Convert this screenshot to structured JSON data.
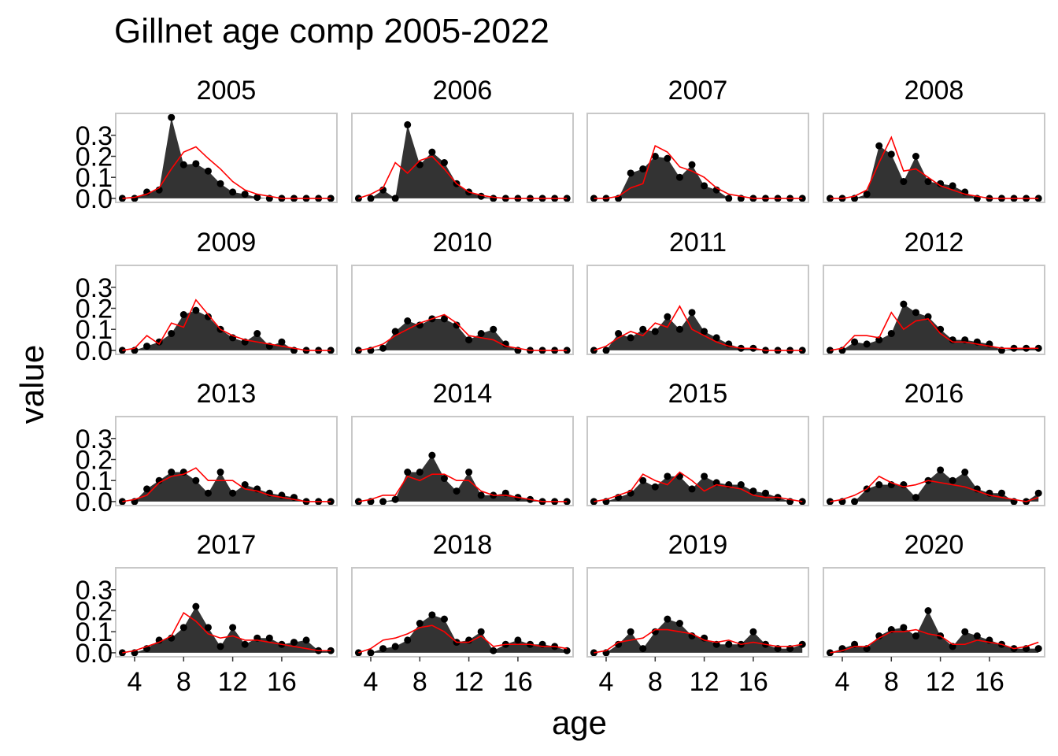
{
  "chart_data": {
    "type": "area-facet",
    "title": "Gillnet age comp 2005-2022",
    "x_label": "age",
    "y_label": "value",
    "ages": [
      3,
      4,
      5,
      6,
      7,
      8,
      9,
      10,
      11,
      12,
      13,
      14,
      15,
      16,
      17,
      18,
      19,
      20
    ],
    "xlim": [
      2.46,
      20.5
    ],
    "xticks": [
      4,
      8,
      12,
      16
    ],
    "ylim": [
      -0.019,
      0.404
    ],
    "yticks": [
      {
        "value": 0,
        "label": "0.0"
      },
      0.1,
      0.2,
      0.3
    ],
    "observed_color": "#333333",
    "fitted_color": "#ff0000",
    "panels": [
      {
        "year": "2005",
        "values": [
          0,
          0,
          0.03,
          0.04,
          0.385,
          0.16,
          0.165,
          0.13,
          0.07,
          0.03,
          0.02,
          0.005,
          0,
          0,
          0,
          0,
          0,
          0
        ],
        "fitted": [
          0,
          0.005,
          0.02,
          0.05,
          0.14,
          0.22,
          0.245,
          0.19,
          0.14,
          0.08,
          0.04,
          0.02,
          0.01,
          0,
          0,
          0,
          0,
          0
        ]
      },
      {
        "year": "2006",
        "values": [
          0,
          0,
          0.04,
          0,
          0.35,
          0.16,
          0.22,
          0.17,
          0.07,
          0.03,
          0.01,
          0,
          0,
          0,
          0,
          0,
          0,
          0
        ],
        "fitted": [
          0,
          0.02,
          0.05,
          0.17,
          0.12,
          0.18,
          0.2,
          0.14,
          0.07,
          0.03,
          0.015,
          0.005,
          0,
          0,
          0,
          0,
          0,
          0
        ]
      },
      {
        "year": "2007",
        "values": [
          0,
          0,
          0,
          0.12,
          0.14,
          0.2,
          0.19,
          0.1,
          0.16,
          0.06,
          0.04,
          0,
          0,
          0,
          0,
          0,
          0,
          0
        ],
        "fitted": [
          0,
          0,
          0.01,
          0.05,
          0.07,
          0.25,
          0.22,
          0.15,
          0.13,
          0.1,
          0.05,
          0.02,
          0.01,
          0,
          0,
          0,
          0,
          0
        ]
      },
      {
        "year": "2008",
        "values": [
          0,
          0,
          0,
          0.02,
          0.25,
          0.21,
          0.08,
          0.2,
          0.08,
          0.07,
          0.06,
          0.03,
          0,
          0,
          0,
          0,
          0,
          0
        ],
        "fitted": [
          0,
          0,
          0.01,
          0.04,
          0.17,
          0.29,
          0.13,
          0.14,
          0.1,
          0.06,
          0.04,
          0.02,
          0.01,
          0,
          0,
          0,
          0,
          0
        ]
      },
      {
        "year": "2009",
        "values": [
          0,
          0,
          0.02,
          0.04,
          0.08,
          0.17,
          0.19,
          0.16,
          0.1,
          0.06,
          0.04,
          0.08,
          0.02,
          0.04,
          0,
          0,
          0,
          0
        ],
        "fitted": [
          0,
          0.01,
          0.07,
          0.03,
          0.13,
          0.11,
          0.24,
          0.17,
          0.1,
          0.07,
          0.05,
          0.04,
          0.03,
          0.02,
          0.01,
          0,
          0,
          0
        ]
      },
      {
        "year": "2010",
        "values": [
          0,
          0,
          0.01,
          0.09,
          0.14,
          0.12,
          0.15,
          0.15,
          0.12,
          0.05,
          0.08,
          0.1,
          0.03,
          0,
          0,
          0,
          0,
          0
        ],
        "fitted": [
          0,
          0.01,
          0.03,
          0.07,
          0.1,
          0.13,
          0.15,
          0.17,
          0.13,
          0.07,
          0.06,
          0.05,
          0.02,
          0.01,
          0,
          0,
          0,
          0
        ]
      },
      {
        "year": "2011",
        "values": [
          0,
          0,
          0.08,
          0.06,
          0.1,
          0.09,
          0.16,
          0.1,
          0.18,
          0.09,
          0.06,
          0.03,
          0.01,
          0.01,
          0,
          0,
          0,
          0
        ],
        "fitted": [
          0,
          0.02,
          0.06,
          0.09,
          0.07,
          0.13,
          0.11,
          0.21,
          0.1,
          0.07,
          0.04,
          0.02,
          0.01,
          0.01,
          0,
          0,
          0,
          0
        ]
      },
      {
        "year": "2012",
        "values": [
          0,
          0,
          0.04,
          0.03,
          0.05,
          0.08,
          0.22,
          0.18,
          0.16,
          0.1,
          0.05,
          0.05,
          0.04,
          0.03,
          0,
          0.01,
          0.01,
          0.01
        ],
        "fitted": [
          0,
          0.01,
          0.07,
          0.07,
          0.06,
          0.18,
          0.1,
          0.14,
          0.15,
          0.08,
          0.04,
          0.04,
          0.03,
          0.02,
          0.01,
          0.01,
          0.01,
          0.01
        ]
      },
      {
        "year": "2013",
        "values": [
          0,
          0,
          0.06,
          0.1,
          0.14,
          0.14,
          0.1,
          0.04,
          0.14,
          0.04,
          0.08,
          0.06,
          0.04,
          0.03,
          0.02,
          0,
          0,
          0
        ],
        "fitted": [
          0,
          0.01,
          0.03,
          0.09,
          0.12,
          0.13,
          0.16,
          0.1,
          0.1,
          0.1,
          0.06,
          0.05,
          0.03,
          0.02,
          0.01,
          0,
          0,
          0
        ]
      },
      {
        "year": "2014",
        "values": [
          0,
          0,
          0,
          0.01,
          0.14,
          0.14,
          0.22,
          0.11,
          0.05,
          0.14,
          0.03,
          0.03,
          0.04,
          0.02,
          0.01,
          0,
          0,
          0
        ],
        "fitted": [
          0,
          0.01,
          0.03,
          0.03,
          0.12,
          0.1,
          0.13,
          0.13,
          0.1,
          0.1,
          0.05,
          0.03,
          0.03,
          0.02,
          0.01,
          0,
          0,
          0
        ]
      },
      {
        "year": "2015",
        "values": [
          0,
          0,
          0.02,
          0.04,
          0.1,
          0.07,
          0.12,
          0.12,
          0.06,
          0.12,
          0.09,
          0.08,
          0.08,
          0.05,
          0.04,
          0.02,
          0,
          0
        ],
        "fitted": [
          0,
          0.01,
          0.03,
          0.05,
          0.13,
          0.1,
          0.08,
          0.14,
          0.1,
          0.05,
          0.08,
          0.07,
          0.06,
          0.03,
          0.02,
          0.02,
          0.01,
          0
        ]
      },
      {
        "year": "2016",
        "values": [
          0,
          0,
          0,
          0.06,
          0.08,
          0.08,
          0.08,
          0.02,
          0.1,
          0.15,
          0.1,
          0.14,
          0.06,
          0.04,
          0.04,
          0,
          0,
          0.04
        ],
        "fitted": [
          0,
          0.01,
          0.03,
          0.06,
          0.12,
          0.09,
          0.07,
          0.08,
          0.1,
          0.09,
          0.08,
          0.07,
          0.05,
          0.03,
          0.02,
          0.01,
          0,
          0.02
        ]
      },
      {
        "year": "2017",
        "values": [
          0,
          0,
          0.02,
          0.06,
          0.07,
          0.12,
          0.22,
          0.12,
          0.03,
          0.12,
          0.04,
          0.07,
          0.07,
          0.04,
          0.05,
          0.06,
          0.01,
          0.01
        ],
        "fitted": [
          0,
          0.01,
          0.03,
          0.05,
          0.08,
          0.19,
          0.15,
          0.09,
          0.07,
          0.08,
          0.06,
          0.06,
          0.05,
          0.04,
          0.03,
          0.02,
          0.01,
          0.01
        ]
      },
      {
        "year": "2018",
        "values": [
          0,
          0,
          0.02,
          0.03,
          0.06,
          0.14,
          0.18,
          0.16,
          0.05,
          0.06,
          0.1,
          0.01,
          0.04,
          0.06,
          0.04,
          0.04,
          0.03,
          0.01
        ],
        "fitted": [
          0,
          0.02,
          0.06,
          0.07,
          0.09,
          0.12,
          0.13,
          0.1,
          0.05,
          0.05,
          0.08,
          0.03,
          0.04,
          0.04,
          0.04,
          0.03,
          0.03,
          0.02
        ]
      },
      {
        "year": "2019",
        "values": [
          0,
          0,
          0.04,
          0.1,
          0.02,
          0.1,
          0.16,
          0.14,
          0.08,
          0.07,
          0.04,
          0.04,
          0.04,
          0.1,
          0.04,
          0.02,
          0.02,
          0.04
        ],
        "fitted": [
          0,
          0.01,
          0.05,
          0.06,
          0.07,
          0.11,
          0.11,
          0.1,
          0.09,
          0.06,
          0.05,
          0.06,
          0.04,
          0.05,
          0.04,
          0.03,
          0.03,
          0.04
        ]
      },
      {
        "year": "2020",
        "values": [
          0,
          0.02,
          0.04,
          0.02,
          0.08,
          0.11,
          0.12,
          0.08,
          0.2,
          0.08,
          0.03,
          0.1,
          0.08,
          0.06,
          0.04,
          0.02,
          0.02,
          0.02
        ],
        "fitted": [
          0,
          0.01,
          0.03,
          0.03,
          0.07,
          0.1,
          0.1,
          0.11,
          0.09,
          0.08,
          0.04,
          0.04,
          0.06,
          0.05,
          0.04,
          0.02,
          0.03,
          0.05
        ]
      }
    ]
  }
}
